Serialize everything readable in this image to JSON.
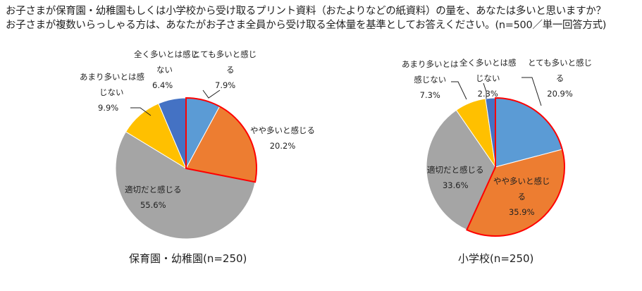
{
  "title_line1": "お子さまが保育園・幼稚園もしくは小学校から受け取るプリント資料（おたよりなどの紙資料）の量を、あなたは多いと思いますか？",
  "title_line2": "お子さまが複数いらっしゃる方は、あなたがお子さま全員から受け取る全体量を基準としてお答えください。(n=500／単一回答方式)",
  "chart_data": [
    {
      "type": "pie",
      "title": "保育園・幼稚園(n=250)",
      "categories": [
        "とても多いと感じる",
        "やや多いと感じる",
        "適切だと感じる",
        "あまり多いとは感じない",
        "全く多いとは感じない"
      ],
      "values": [
        7.9,
        20.2,
        55.6,
        9.9,
        6.4
      ],
      "labels": [
        {
          "l1": "とても多いと感じ",
          "l2": "る",
          "v": "7.9%"
        },
        {
          "l1": "やや多いと感じる",
          "l2": "",
          "v": "20.2%"
        },
        {
          "l1": "適切だと感じる",
          "l2": "",
          "v": "55.6%"
        },
        {
          "l1": "あまり多いとは感",
          "l2": "じない",
          "v": "9.9%"
        },
        {
          "l1": "全く多いとは感じ",
          "l2": "ない",
          "v": "6.4%"
        }
      ],
      "highlight_outline": "とても多いと感じる + やや多いと感じる"
    },
    {
      "type": "pie",
      "title": "小学校(n=250)",
      "categories": [
        "とても多いと感じる",
        "やや多いと感じる",
        "適切だと感じる",
        "あまり多いとは感じない",
        "全く多いとは感じない"
      ],
      "values": [
        20.9,
        35.9,
        33.6,
        7.3,
        2.3
      ],
      "labels": [
        {
          "l1": "とても多いと感じ",
          "l2": "る",
          "v": "20.9%"
        },
        {
          "l1": "やや多いと感じ",
          "l2": "る",
          "v": "35.9%"
        },
        {
          "l1": "適切だと感じる",
          "l2": "",
          "v": "33.6%"
        },
        {
          "l1": "あまり多いとは",
          "l2": "感じない",
          "v": "7.3%"
        },
        {
          "l1": "全く多いとは感",
          "l2": "じない",
          "v": "2.3%"
        }
      ],
      "highlight_outline": "とても多いと感じる + やや多いと感じる"
    }
  ],
  "colors": [
    "#5B9BD5",
    "#ED7D31",
    "#A5A5A5",
    "#FFC000",
    "#4472C4"
  ],
  "outline_color": "#FF0000"
}
